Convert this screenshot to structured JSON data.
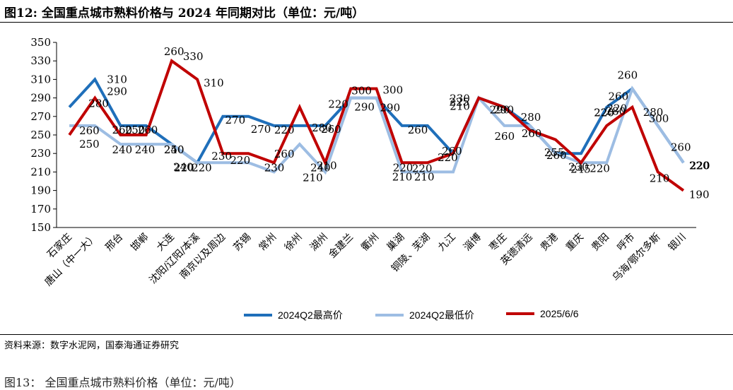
{
  "figure": {
    "title": "图12:  全国重点城市熟料价格与 2024 年同期对比（单位：元/吨）",
    "source": "资料来源：数字水泥网，国泰海通证券研究",
    "next_title": "图13：                    全国重点城市熟料价格（单位：元/吨）"
  },
  "chart_data": {
    "type": "line",
    "categories": [
      "石家庄",
      "唐山（中一大）",
      "邢台",
      "邯郸",
      "大连",
      "沈阳/辽阳/本溪",
      "南京以及周边",
      "苏锡",
      "常州",
      "徐州",
      "湖州",
      "金建兰",
      "衢州",
      "巢湖",
      "铜陵、芜湖",
      "九江",
      "淄博",
      "枣庄",
      "英德清远",
      "贵港",
      "重庆",
      "贵阳",
      "呼市",
      "乌海/鄂尔多斯",
      "银川"
    ],
    "ylim": [
      150,
      350
    ],
    "yticks": [
      150,
      170,
      190,
      210,
      230,
      250,
      270,
      290,
      310,
      330,
      350
    ],
    "series": [
      {
        "name": "2024Q2最高价",
        "color": "#1f6fba",
        "values": [
          280,
          310,
          260,
          260,
          240,
          220,
          270,
          270,
          260,
          260,
          260,
          290,
          290,
          260,
          260,
          230,
          290,
          280,
          260,
          230,
          230,
          280,
          300,
          260,
          220
        ]
      },
      {
        "name": "2024Q2最低价",
        "color": "#9dbde3",
        "values": [
          260,
          260,
          240,
          240,
          240,
          220,
          220,
          220,
          210,
          240,
          210,
          290,
          290,
          210,
          210,
          210,
          290,
          260,
          260,
          230,
          220,
          220,
          300,
          260,
          220
        ]
      },
      {
        "name": "2025/6/6",
        "color": "#c00000",
        "values": [
          250,
          290,
          250,
          250,
          330,
          310,
          230,
          230,
          220,
          280,
          220,
          300,
          300,
          220,
          220,
          230,
          290,
          280,
          255,
          245,
          220,
          260,
          280,
          210,
          190
        ]
      }
    ],
    "data_labels": [
      "260",
      "280",
      "250",
      "310",
      "290",
      "260",
      "260",
      "250",
      "240",
      "240",
      "260",
      "250",
      "240",
      "240",
      "330",
      "310",
      "220",
      "220",
      "270",
      "230",
      "270",
      "220",
      "230",
      "220",
      "260",
      "210",
      "280",
      "220",
      "210",
      "260",
      "240",
      "300",
      "290",
      "300",
      "290",
      "260",
      "220",
      "220",
      "210",
      "260",
      "210",
      "220",
      "225",
      "230",
      "210",
      "290",
      "290",
      "280",
      "260",
      "260",
      "255",
      "260",
      "245",
      "230",
      "220",
      "220",
      "220",
      "260",
      "280",
      "300",
      "220",
      "260",
      "280",
      "210",
      "260",
      "220",
      "220",
      "190"
    ],
    "grid": false,
    "legend_position": "bottom"
  }
}
